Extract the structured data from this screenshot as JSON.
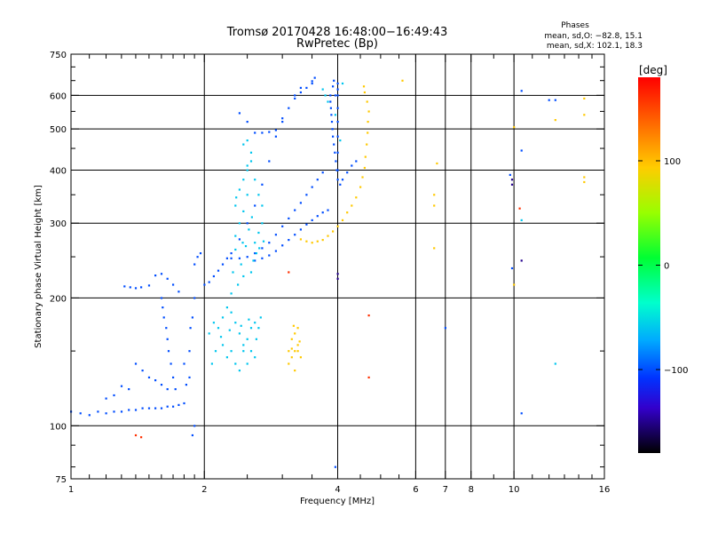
{
  "chart_data": {
    "type": "scatter",
    "title": "Tromsø 20170428 16:48:00−16:49:43",
    "subtitle": "RwPretec (Bp)",
    "stats": {
      "heading": "Phases",
      "line1": "mean, sd,O: −82.8, 15.1",
      "line2": "mean, sd,X: 102.1, 18.3"
    },
    "xlabel": "Frequency [MHz]",
    "ylabel": "Stationary phase Virtual Height [km]",
    "x_scale": "log",
    "y_scale": "log",
    "xlim": [
      1,
      16
    ],
    "ylim": [
      75,
      750
    ],
    "x_ticks": [
      1,
      2,
      4,
      6,
      7,
      8,
      10,
      16
    ],
    "x_tick_labels": [
      "1",
      "2",
      "4",
      "6",
      "7",
      "8",
      "10",
      "16"
    ],
    "y_ticks": [
      75,
      100,
      200,
      300,
      400,
      500,
      600,
      750
    ],
    "y_tick_labels": [
      "75",
      "100",
      "200",
      "300",
      "400",
      "500",
      "600",
      "750"
    ],
    "grid": true,
    "colorbar": {
      "label": "[deg]",
      "min": -180,
      "max": 180,
      "ticks": [
        100,
        0,
        -100
      ],
      "tick_labels": [
        "100",
        "0",
        "−100"
      ]
    },
    "series": [
      {
        "phase_deg": -100,
        "points": [
          [
            1.0,
            108
          ],
          [
            1.05,
            107
          ],
          [
            1.1,
            106
          ],
          [
            1.15,
            108
          ],
          [
            1.2,
            107
          ],
          [
            1.25,
            108
          ],
          [
            1.3,
            108
          ],
          [
            1.35,
            109
          ],
          [
            1.4,
            109
          ],
          [
            1.45,
            110
          ],
          [
            1.5,
            110
          ],
          [
            1.55,
            110
          ],
          [
            1.6,
            110
          ],
          [
            1.65,
            111
          ],
          [
            1.7,
            111
          ],
          [
            1.75,
            112
          ],
          [
            1.8,
            113
          ],
          [
            1.32,
            213
          ],
          [
            1.36,
            212
          ],
          [
            1.4,
            211
          ],
          [
            1.44,
            212
          ],
          [
            1.5,
            214
          ],
          [
            1.55,
            226
          ],
          [
            1.6,
            228
          ],
          [
            1.65,
            222
          ],
          [
            1.7,
            215
          ],
          [
            1.75,
            207
          ],
          [
            1.6,
            200
          ],
          [
            1.61,
            190
          ],
          [
            1.62,
            180
          ],
          [
            1.64,
            170
          ],
          [
            1.65,
            160
          ],
          [
            1.66,
            150
          ],
          [
            1.68,
            140
          ],
          [
            1.7,
            130
          ],
          [
            1.72,
            122
          ],
          [
            1.4,
            140
          ],
          [
            1.45,
            135
          ],
          [
            1.5,
            130
          ],
          [
            1.55,
            128
          ],
          [
            1.6,
            125
          ],
          [
            1.65,
            122
          ],
          [
            1.3,
            124
          ],
          [
            1.35,
            122
          ],
          [
            1.25,
            118
          ],
          [
            1.2,
            116
          ],
          [
            1.8,
            140
          ],
          [
            1.85,
            150
          ],
          [
            1.86,
            170
          ],
          [
            1.88,
            180
          ],
          [
            1.9,
            200
          ],
          [
            1.85,
            130
          ],
          [
            1.82,
            125
          ],
          [
            1.9,
            240
          ],
          [
            1.93,
            250
          ],
          [
            1.96,
            255
          ],
          [
            1.88,
            95
          ],
          [
            1.9,
            100
          ],
          [
            2.0,
            215
          ],
          [
            2.05,
            218
          ],
          [
            2.1,
            225
          ],
          [
            2.15,
            232
          ],
          [
            2.2,
            240
          ],
          [
            2.25,
            248
          ],
          [
            2.3,
            255
          ],
          [
            2.4,
            275
          ],
          [
            2.5,
            300
          ],
          [
            2.6,
            330
          ],
          [
            2.7,
            370
          ],
          [
            2.8,
            420
          ],
          [
            2.9,
            480
          ],
          [
            3.0,
            520
          ],
          [
            3.1,
            560
          ],
          [
            3.2,
            590
          ],
          [
            3.3,
            610
          ],
          [
            3.4,
            625
          ],
          [
            3.5,
            640
          ],
          [
            2.3,
            248
          ],
          [
            2.4,
            248
          ],
          [
            2.5,
            250
          ],
          [
            2.6,
            255
          ],
          [
            2.7,
            262
          ],
          [
            2.8,
            270
          ],
          [
            2.9,
            282
          ],
          [
            3.0,
            295
          ],
          [
            3.1,
            308
          ],
          [
            3.2,
            322
          ],
          [
            3.3,
            335
          ],
          [
            3.4,
            350
          ],
          [
            3.5,
            365
          ],
          [
            3.6,
            380
          ],
          [
            3.7,
            395
          ],
          [
            2.6,
            245
          ],
          [
            2.7,
            248
          ],
          [
            2.8,
            252
          ],
          [
            2.9,
            258
          ],
          [
            3.0,
            266
          ],
          [
            3.1,
            274
          ],
          [
            3.2,
            282
          ],
          [
            3.3,
            290
          ],
          [
            3.4,
            298
          ],
          [
            3.5,
            305
          ],
          [
            3.6,
            312
          ],
          [
            3.7,
            318
          ],
          [
            3.8,
            322
          ],
          [
            2.6,
            490
          ],
          [
            2.7,
            490
          ],
          [
            2.8,
            492
          ],
          [
            2.9,
            497
          ],
          [
            2.5,
            520
          ],
          [
            2.4,
            545
          ],
          [
            3.85,
            600
          ],
          [
            3.85,
            580
          ],
          [
            3.86,
            560
          ],
          [
            3.87,
            540
          ],
          [
            3.88,
            520
          ],
          [
            3.89,
            500
          ],
          [
            3.9,
            480
          ],
          [
            3.92,
            460
          ],
          [
            3.94,
            440
          ],
          [
            3.96,
            420
          ],
          [
            3.98,
            400
          ],
          [
            4.0,
            380
          ],
          [
            4.05,
            370
          ],
          [
            4.1,
            380
          ],
          [
            4.2,
            395
          ],
          [
            4.3,
            410
          ],
          [
            4.4,
            420
          ],
          [
            4.0,
            640
          ],
          [
            4.0,
            620
          ],
          [
            4.0,
            600
          ],
          [
            4.0,
            560
          ],
          [
            4.0,
            520
          ],
          [
            4.0,
            480
          ],
          [
            4.0,
            440
          ],
          [
            4.0,
            400
          ],
          [
            3.95,
            600
          ],
          [
            3.92,
            650
          ],
          [
            3.9,
            630
          ],
          [
            3.0,
            530
          ],
          [
            3.2,
            600
          ],
          [
            3.3,
            625
          ],
          [
            3.5,
            648
          ],
          [
            3.55,
            660
          ],
          [
            9.8,
            390
          ],
          [
            10.4,
            615
          ],
          [
            12.0,
            585
          ],
          [
            12.4,
            585
          ],
          [
            10.4,
            445
          ],
          [
            10.4,
            107
          ],
          [
            9.9,
            235
          ],
          [
            3.95,
            80
          ],
          [
            7.0,
            170
          ]
        ]
      },
      {
        "phase_deg": -60,
        "points": [
          [
            2.35,
            280
          ],
          [
            2.4,
            300
          ],
          [
            2.45,
            320
          ],
          [
            2.5,
            350
          ],
          [
            2.35,
            330
          ],
          [
            2.4,
            360
          ],
          [
            2.45,
            380
          ],
          [
            2.5,
            400
          ],
          [
            2.35,
            260
          ],
          [
            2.42,
            240
          ],
          [
            2.48,
            265
          ],
          [
            2.52,
            290
          ],
          [
            2.56,
            310
          ],
          [
            2.6,
            270
          ],
          [
            2.62,
            255
          ],
          [
            2.65,
            285
          ],
          [
            2.7,
            300
          ],
          [
            2.55,
            230
          ],
          [
            2.45,
            225
          ],
          [
            2.38,
            215
          ],
          [
            2.32,
            230
          ],
          [
            2.3,
            205
          ],
          [
            2.36,
            345
          ],
          [
            2.44,
            270
          ],
          [
            2.58,
            245
          ],
          [
            2.66,
            262
          ],
          [
            2.72,
            272
          ],
          [
            2.05,
            165
          ],
          [
            2.1,
            175
          ],
          [
            2.15,
            170
          ],
          [
            2.2,
            155
          ],
          [
            2.25,
            145
          ],
          [
            2.3,
            150
          ],
          [
            2.35,
            140
          ],
          [
            2.4,
            135
          ],
          [
            2.45,
            155
          ],
          [
            2.5,
            160
          ],
          [
            2.55,
            170
          ],
          [
            2.6,
            175
          ],
          [
            2.65,
            170
          ],
          [
            2.2,
            180
          ],
          [
            2.25,
            190
          ],
          [
            2.3,
            185
          ],
          [
            2.35,
            175
          ],
          [
            2.4,
            165
          ],
          [
            2.45,
            150
          ],
          [
            2.5,
            140
          ],
          [
            2.55,
            150
          ],
          [
            2.6,
            145
          ],
          [
            2.08,
            140
          ],
          [
            2.12,
            150
          ],
          [
            2.18,
            162
          ],
          [
            2.28,
            168
          ],
          [
            2.42,
            172
          ],
          [
            2.52,
            178
          ],
          [
            2.62,
            160
          ],
          [
            2.68,
            180
          ],
          [
            2.5,
            410
          ],
          [
            2.55,
            420
          ],
          [
            2.6,
            380
          ],
          [
            2.65,
            350
          ],
          [
            2.7,
            330
          ],
          [
            2.55,
            440
          ],
          [
            2.45,
            460
          ],
          [
            2.5,
            470
          ],
          [
            3.7,
            620
          ],
          [
            3.75,
            600
          ],
          [
            3.8,
            580
          ],
          [
            4.1,
            640
          ],
          [
            3.95,
            540
          ],
          [
            4.05,
            470
          ],
          [
            12.4,
            140
          ],
          [
            10.4,
            305
          ]
        ]
      },
      {
        "phase_deg": 95,
        "points": [
          [
            3.3,
            275
          ],
          [
            3.4,
            272
          ],
          [
            3.5,
            270
          ],
          [
            3.6,
            272
          ],
          [
            3.7,
            274
          ],
          [
            3.8,
            280
          ],
          [
            3.9,
            287
          ],
          [
            4.0,
            295
          ],
          [
            4.1,
            305
          ],
          [
            4.2,
            318
          ],
          [
            4.3,
            330
          ],
          [
            4.4,
            345
          ],
          [
            4.5,
            365
          ],
          [
            4.55,
            385
          ],
          [
            4.6,
            405
          ],
          [
            4.62,
            430
          ],
          [
            4.65,
            460
          ],
          [
            4.67,
            490
          ],
          [
            4.68,
            520
          ],
          [
            4.7,
            550
          ],
          [
            4.66,
            580
          ],
          [
            4.6,
            610
          ],
          [
            4.58,
            630
          ],
          [
            3.1,
            140
          ],
          [
            3.15,
            145
          ],
          [
            3.2,
            150
          ],
          [
            3.25,
            155
          ],
          [
            3.15,
            160
          ],
          [
            3.2,
            165
          ],
          [
            3.25,
            150
          ],
          [
            3.1,
            150
          ],
          [
            3.2,
            135
          ],
          [
            3.3,
            145
          ],
          [
            3.15,
            152
          ],
          [
            3.25,
            170
          ],
          [
            3.18,
            172
          ],
          [
            3.28,
            158
          ],
          [
            5.6,
            650
          ],
          [
            6.6,
            350
          ],
          [
            6.6,
            330
          ],
          [
            6.7,
            415
          ],
          [
            6.6,
            262
          ],
          [
            10.0,
            505
          ],
          [
            14.4,
            590
          ],
          [
            14.4,
            540
          ],
          [
            14.4,
            375
          ],
          [
            14.4,
            385
          ],
          [
            12.4,
            525
          ],
          [
            10.0,
            215
          ]
        ]
      },
      {
        "phase_deg": 160,
        "points": [
          [
            1.4,
            95
          ],
          [
            1.44,
            94
          ],
          [
            4.7,
            182
          ],
          [
            4.7,
            130
          ],
          [
            10.3,
            325
          ],
          [
            3.1,
            230
          ]
        ]
      },
      {
        "phase_deg": -150,
        "points": [
          [
            9.9,
            380
          ],
          [
            9.9,
            370
          ],
          [
            10.4,
            245
          ],
          [
            4.0,
            228
          ],
          [
            4.0,
            222
          ]
        ]
      }
    ]
  }
}
